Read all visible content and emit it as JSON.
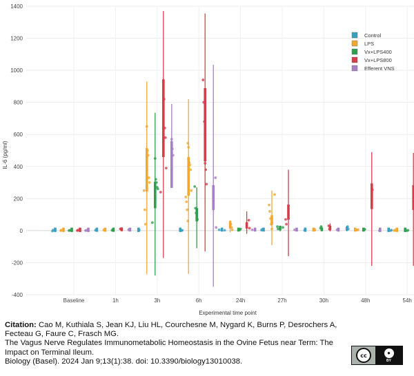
{
  "chart_data": {
    "type": "scatter",
    "title": "",
    "xlabel": "Experimental time point",
    "ylabel": "IL-6 (pg/ml)",
    "ylim": [
      -400,
      1400
    ],
    "yticks": [
      -400,
      -200,
      0,
      200,
      400,
      600,
      800,
      1000,
      1200,
      1400
    ],
    "grid": true,
    "legend_position": "top-right",
    "categories": [
      "Baseline",
      "1h",
      "3h",
      "6h",
      "24h",
      "27h",
      "30h",
      "48h",
      "54h"
    ],
    "series": [
      {
        "name": "Control",
        "color": "#3a9fbf",
        "means": [
          0,
          2,
          0,
          0,
          5,
          5,
          2,
          15,
          0
        ],
        "ci_low": [
          -5,
          -5,
          -5,
          -5,
          -5,
          -5,
          -5,
          -5,
          -5
        ],
        "ci_high": [
          5,
          8,
          5,
          5,
          15,
          10,
          10,
          30,
          5
        ],
        "points": [
          [
            0,
            -3
          ],
          [
            0,
            3
          ],
          [
            1,
            2
          ],
          [
            1,
            5
          ],
          [
            2,
            0
          ],
          [
            2,
            4
          ],
          [
            3,
            0
          ],
          [
            3,
            2
          ],
          [
            4,
            2
          ],
          [
            4,
            5
          ],
          [
            5,
            3
          ],
          [
            5,
            8
          ],
          [
            6,
            2
          ],
          [
            6,
            5
          ],
          [
            7,
            25
          ],
          [
            7,
            10
          ],
          [
            8,
            0
          ],
          [
            8,
            3
          ]
        ]
      },
      {
        "name": "LPS",
        "color": "#f0a830",
        "means": [
          0,
          3,
          460,
          410,
          40,
          80,
          5,
          5,
          0
        ],
        "ci_low": [
          -5,
          -5,
          -270,
          -270,
          -10,
          -90,
          -5,
          -5,
          -5
        ],
        "ci_high": [
          5,
          10,
          930,
          820,
          60,
          250,
          15,
          10,
          5
        ],
        "points": [
          [
            0,
            0
          ],
          [
            0,
            3
          ],
          [
            1,
            3
          ],
          [
            1,
            6
          ],
          [
            2,
            650
          ],
          [
            2,
            500
          ],
          [
            2,
            470
          ],
          [
            2,
            330
          ],
          [
            2,
            300
          ],
          [
            2,
            250
          ],
          [
            2,
            130
          ],
          [
            2,
            40
          ],
          [
            3,
            545
          ],
          [
            3,
            520
          ],
          [
            3,
            425
          ],
          [
            3,
            410
          ],
          [
            3,
            380
          ],
          [
            3,
            250
          ],
          [
            3,
            210
          ],
          [
            3,
            180
          ],
          [
            3,
            130
          ],
          [
            3,
            60
          ],
          [
            4,
            55
          ],
          [
            4,
            40
          ],
          [
            4,
            20
          ],
          [
            4,
            5
          ],
          [
            5,
            225
          ],
          [
            5,
            160
          ],
          [
            5,
            120
          ],
          [
            5,
            75
          ],
          [
            5,
            40
          ],
          [
            5,
            10
          ],
          [
            6,
            10
          ],
          [
            6,
            3
          ],
          [
            7,
            3
          ],
          [
            7,
            6
          ],
          [
            8,
            0
          ],
          [
            8,
            3
          ]
        ]
      },
      {
        "name": "Vx+LPS400",
        "color": "#2e9e4f",
        "means": [
          0,
          2,
          270,
          120,
          5,
          20,
          10,
          5,
          0
        ],
        "ci_low": [
          -5,
          -5,
          -280,
          -110,
          -5,
          -5,
          -5,
          -5,
          -5
        ],
        "ci_high": [
          5,
          8,
          735,
          270,
          15,
          30,
          30,
          10,
          5
        ],
        "points": [
          [
            0,
            0
          ],
          [
            0,
            2
          ],
          [
            1,
            2
          ],
          [
            1,
            5
          ],
          [
            2,
            450
          ],
          [
            2,
            320
          ],
          [
            2,
            300
          ],
          [
            2,
            270
          ],
          [
            2,
            260
          ],
          [
            2,
            50
          ],
          [
            3,
            275
          ],
          [
            3,
            140
          ],
          [
            3,
            110
          ],
          [
            3,
            80
          ],
          [
            3,
            70
          ],
          [
            4,
            5
          ],
          [
            4,
            10
          ],
          [
            5,
            20
          ],
          [
            5,
            25
          ],
          [
            5,
            10
          ],
          [
            6,
            15
          ],
          [
            6,
            25
          ],
          [
            6,
            5
          ],
          [
            7,
            5
          ],
          [
            7,
            8
          ],
          [
            8,
            0
          ],
          [
            8,
            2
          ]
        ]
      },
      {
        "name": "Vx+LPS800",
        "color": "#d43d4a",
        "means": [
          0,
          10,
          850,
          800,
          40,
          140,
          20,
          260,
          250
        ],
        "ci_low": [
          -5,
          -5,
          -170,
          -130,
          -20,
          -160,
          -5,
          -220,
          -220
        ],
        "ci_high": [
          5,
          15,
          1370,
          1355,
          120,
          380,
          45,
          490,
          485
        ],
        "points": [
          [
            0,
            0
          ],
          [
            0,
            3
          ],
          [
            1,
            10
          ],
          [
            1,
            12
          ],
          [
            2,
            930
          ],
          [
            2,
            820
          ],
          [
            2,
            640
          ],
          [
            2,
            580
          ],
          [
            2,
            390
          ],
          [
            2,
            240
          ],
          [
            3,
            940
          ],
          [
            3,
            800
          ],
          [
            3,
            680
          ],
          [
            3,
            420
          ],
          [
            3,
            380
          ],
          [
            3,
            290
          ],
          [
            4,
            65
          ],
          [
            4,
            15
          ],
          [
            5,
            70
          ],
          [
            5,
            40
          ],
          [
            6,
            30
          ],
          [
            6,
            10
          ],
          [
            7,
            265
          ],
          [
            7,
            255
          ],
          [
            8,
            265
          ],
          [
            8,
            250
          ]
        ]
      },
      {
        "name": "Efferent VNS",
        "color": "#a77fc4",
        "means": [
          0,
          5,
          500,
          250,
          5,
          5,
          5,
          0,
          0
        ],
        "ci_low": [
          -5,
          -5,
          400,
          -350,
          -5,
          -5,
          -5,
          -5,
          -5
        ],
        "ci_high": [
          5,
          10,
          790,
          1035,
          10,
          10,
          10,
          5,
          5
        ],
        "points": [
          [
            0,
            0
          ],
          [
            0,
            2
          ],
          [
            1,
            5
          ],
          [
            1,
            8
          ],
          [
            2,
            570
          ],
          [
            2,
            510
          ],
          [
            2,
            470
          ],
          [
            3,
            330
          ],
          [
            3,
            20
          ],
          [
            4,
            5
          ],
          [
            5,
            5
          ],
          [
            6,
            5
          ],
          [
            7,
            0
          ],
          [
            8,
            0
          ]
        ]
      }
    ]
  },
  "citation": {
    "label": "Citation:",
    "authors": " Cao M, Kuthiala S, Jean KJ, Liu HL, Courchesne M, Nygard K, Burns P, Desrochers A, Fecteau G, Faure C, Frasch MG.",
    "title_text": "The Vagus Nerve Regulates Immunometabolic Homeostasis in the Ovine Fetus near Term: The Impact on Terminal Ileum.",
    "journal": "Biology (Basel). 2024 Jan 9;13(1):38. doi: 10.3390/biology13010038."
  },
  "license_badge": {
    "cc_text": "cc",
    "by_text": "BY",
    "icon": "creative-commons-by-icon"
  }
}
